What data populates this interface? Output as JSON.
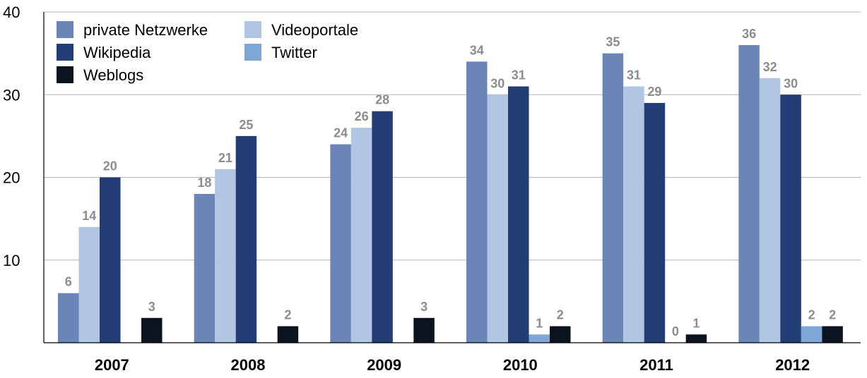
{
  "chart_data": {
    "type": "bar",
    "categories": [
      "2007",
      "2008",
      "2009",
      "2010",
      "2011",
      "2012"
    ],
    "series": [
      {
        "name": "private Netzwerke",
        "color": "#6b86b6",
        "values": [
          6,
          18,
          24,
          34,
          35,
          36
        ]
      },
      {
        "name": "Videoportale",
        "color": "#b0c6e2",
        "values": [
          14,
          21,
          26,
          30,
          31,
          32
        ]
      },
      {
        "name": "Wikipedia",
        "color": "#233d75",
        "values": [
          20,
          25,
          28,
          31,
          29,
          30
        ]
      },
      {
        "name": "Twitter",
        "color": "#7fa7d6",
        "values": [
          null,
          null,
          null,
          1,
          0,
          2
        ]
      },
      {
        "name": "Weblogs",
        "color": "#0b1220",
        "values": [
          3,
          2,
          3,
          2,
          1,
          2
        ]
      }
    ],
    "yticks": [
      10,
      20,
      30,
      40
    ],
    "ylim": [
      0,
      40
    ],
    "grid": true,
    "legend": "top-left",
    "data_labels": true
  }
}
